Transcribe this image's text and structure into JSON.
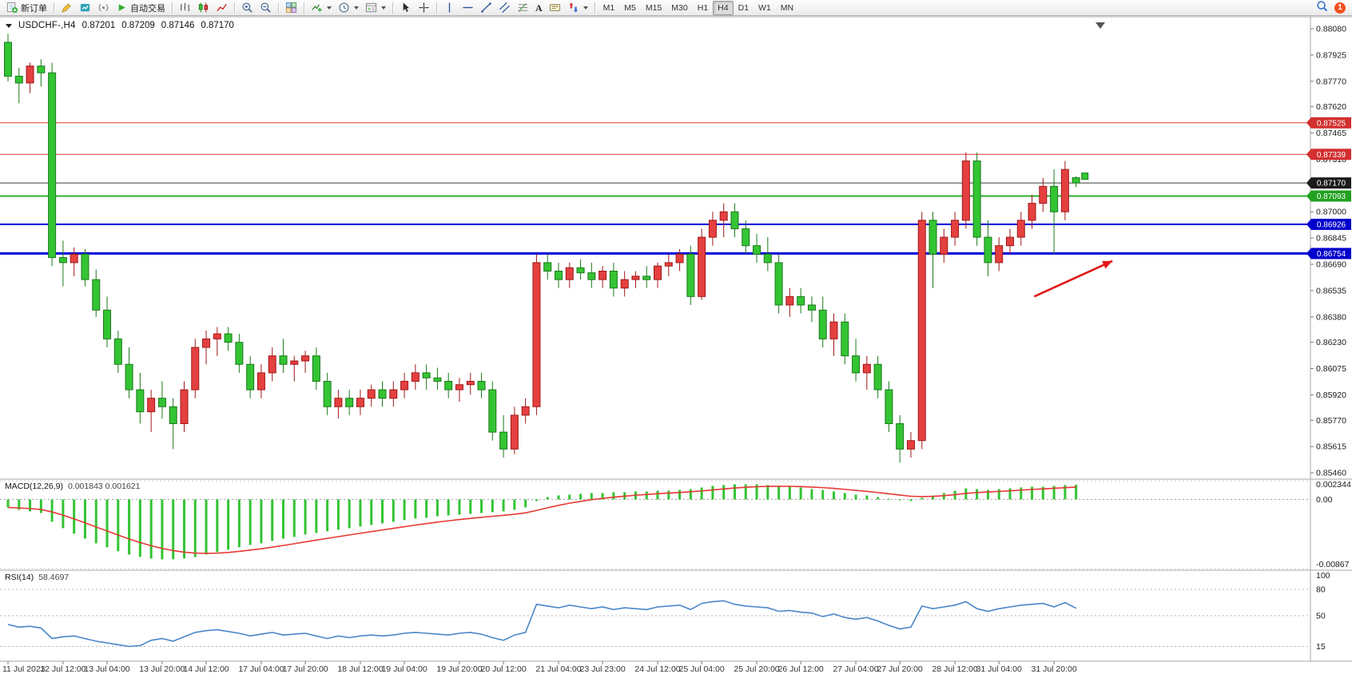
{
  "toolbar": {
    "new_order": "新订单",
    "autotrading": "自动交易",
    "timeframes": [
      "M1",
      "M5",
      "M15",
      "M30",
      "H1",
      "H4",
      "D1",
      "W1",
      "MN"
    ],
    "active_timeframe": "H4",
    "notification_count": "1",
    "glyphs": {
      "text_tool": "A"
    }
  },
  "chart": {
    "symbol": "USDCHF-,H4",
    "ohlc": {
      "open": "0.87201",
      "high": "0.87209",
      "low": "0.87146",
      "close": "0.87170"
    }
  },
  "macd": {
    "label": "MACD(12,26,9)",
    "values": "0.001843 0.001621"
  },
  "rsi": {
    "label": "RSI(14)",
    "value": "58.4697"
  },
  "chart_data": {
    "type": "candlestick",
    "symbol": "USDCHF-",
    "timeframe": "H4",
    "price_range": [
      0.85432,
      0.88146
    ],
    "colors": {
      "up": {
        "fill": "#e54040",
        "stroke": "#a01818"
      },
      "down": {
        "fill": "#33c433",
        "stroke": "#1b7a1b"
      }
    },
    "y_ticks": [
      "0.88080",
      "0.87925",
      "0.87770",
      "0.87620",
      "0.87465",
      "0.87310",
      "0.87155",
      "0.87000",
      "0.86845",
      "0.86690",
      "0.86535",
      "0.86380",
      "0.86230",
      "0.86075",
      "0.85920",
      "0.85770",
      "0.85615",
      "0.85460"
    ],
    "hlines": [
      {
        "price": 0.87525,
        "color": "#e03a3a",
        "width": 1,
        "label": "0.87525",
        "badge": "#d32f2f"
      },
      {
        "price": 0.87339,
        "color": "#e03a3a",
        "width": 1,
        "label": "0.87339",
        "badge": "#d32f2f"
      },
      {
        "price": 0.8717,
        "color": "#3c3c3c",
        "width": 1,
        "label": "0.87170",
        "badge": "#1b1b1b"
      },
      {
        "price": 0.87093,
        "color": "#2fae2f",
        "width": 2,
        "label": "0.87093",
        "badge": "#21a121"
      },
      {
        "price": 0.86926,
        "color": "#0000dd",
        "width": 2,
        "label": "0.86926",
        "badge": "#0000cc"
      },
      {
        "price": 0.86754,
        "color": "#0000dd",
        "width": 3,
        "label": "0.86754",
        "badge": "#0000cc"
      }
    ],
    "candles": [
      [
        0.88,
        0.8805,
        0.8777,
        0.878
      ],
      [
        0.878,
        0.8785,
        0.8764,
        0.8776
      ],
      [
        0.8776,
        0.8788,
        0.877,
        0.8786
      ],
      [
        0.8786,
        0.879,
        0.8774,
        0.8782
      ],
      [
        0.8782,
        0.8788,
        0.8668,
        0.8673
      ],
      [
        0.8673,
        0.8683,
        0.8656,
        0.867
      ],
      [
        0.867,
        0.8679,
        0.8662,
        0.8675
      ],
      [
        0.8675,
        0.8678,
        0.8656,
        0.866
      ],
      [
        0.866,
        0.8666,
        0.8638,
        0.8642
      ],
      [
        0.8642,
        0.865,
        0.862,
        0.8625
      ],
      [
        0.8625,
        0.863,
        0.8605,
        0.861
      ],
      [
        0.861,
        0.862,
        0.859,
        0.8595
      ],
      [
        0.8595,
        0.8605,
        0.8575,
        0.8582
      ],
      [
        0.8582,
        0.8595,
        0.857,
        0.859
      ],
      [
        0.859,
        0.86,
        0.8578,
        0.8585
      ],
      [
        0.8585,
        0.859,
        0.856,
        0.8575
      ],
      [
        0.8575,
        0.86,
        0.857,
        0.8595
      ],
      [
        0.8595,
        0.8625,
        0.859,
        0.862
      ],
      [
        0.862,
        0.863,
        0.861,
        0.8625
      ],
      [
        0.8625,
        0.8632,
        0.8615,
        0.8628
      ],
      [
        0.8628,
        0.8632,
        0.8618,
        0.8623
      ],
      [
        0.8623,
        0.8628,
        0.8605,
        0.861
      ],
      [
        0.861,
        0.8615,
        0.859,
        0.8595
      ],
      [
        0.8595,
        0.861,
        0.859,
        0.8605
      ],
      [
        0.8605,
        0.862,
        0.86,
        0.8615
      ],
      [
        0.8615,
        0.8625,
        0.8605,
        0.861
      ],
      [
        0.861,
        0.8615,
        0.86,
        0.8612
      ],
      [
        0.8612,
        0.8618,
        0.8605,
        0.8615
      ],
      [
        0.8615,
        0.862,
        0.8595,
        0.86
      ],
      [
        0.86,
        0.8605,
        0.858,
        0.8585
      ],
      [
        0.8585,
        0.8595,
        0.8578,
        0.859
      ],
      [
        0.859,
        0.8595,
        0.858,
        0.8585
      ],
      [
        0.8585,
        0.8595,
        0.858,
        0.859
      ],
      [
        0.859,
        0.8598,
        0.8585,
        0.8595
      ],
      [
        0.8595,
        0.86,
        0.8585,
        0.859
      ],
      [
        0.859,
        0.86,
        0.8585,
        0.8595
      ],
      [
        0.8595,
        0.8605,
        0.859,
        0.86
      ],
      [
        0.86,
        0.861,
        0.8595,
        0.8605
      ],
      [
        0.8605,
        0.861,
        0.8595,
        0.8602
      ],
      [
        0.8602,
        0.8608,
        0.8595,
        0.86
      ],
      [
        0.86,
        0.8605,
        0.859,
        0.8595
      ],
      [
        0.8595,
        0.8602,
        0.8588,
        0.8598
      ],
      [
        0.8598,
        0.8605,
        0.8592,
        0.86
      ],
      [
        0.86,
        0.8605,
        0.859,
        0.8595
      ],
      [
        0.8595,
        0.86,
        0.8565,
        0.857
      ],
      [
        0.857,
        0.858,
        0.8555,
        0.856
      ],
      [
        0.856,
        0.8585,
        0.8557,
        0.858
      ],
      [
        0.858,
        0.859,
        0.8575,
        0.8585
      ],
      [
        0.8585,
        0.8675,
        0.858,
        0.867
      ],
      [
        0.867,
        0.8675,
        0.866,
        0.8665
      ],
      [
        0.8665,
        0.867,
        0.8655,
        0.866
      ],
      [
        0.866,
        0.867,
        0.8655,
        0.8667
      ],
      [
        0.8667,
        0.8672,
        0.866,
        0.8664
      ],
      [
        0.8664,
        0.867,
        0.8655,
        0.866
      ],
      [
        0.866,
        0.8668,
        0.8655,
        0.8665
      ],
      [
        0.8665,
        0.867,
        0.865,
        0.8655
      ],
      [
        0.8655,
        0.8665,
        0.865,
        0.866
      ],
      [
        0.866,
        0.8665,
        0.8655,
        0.8662
      ],
      [
        0.8662,
        0.8668,
        0.8655,
        0.866
      ],
      [
        0.866,
        0.867,
        0.8655,
        0.8668
      ],
      [
        0.8668,
        0.8675,
        0.8662,
        0.867
      ],
      [
        0.867,
        0.8678,
        0.8665,
        0.8675
      ],
      [
        0.8675,
        0.868,
        0.8645,
        0.865
      ],
      [
        0.865,
        0.869,
        0.8648,
        0.8685
      ],
      [
        0.8685,
        0.87,
        0.868,
        0.8695
      ],
      [
        0.8695,
        0.8705,
        0.8685,
        0.87
      ],
      [
        0.87,
        0.8705,
        0.8685,
        0.869
      ],
      [
        0.869,
        0.8695,
        0.8675,
        0.868
      ],
      [
        0.868,
        0.8687,
        0.867,
        0.8675
      ],
      [
        0.8675,
        0.8685,
        0.8665,
        0.867
      ],
      [
        0.867,
        0.8675,
        0.864,
        0.8645
      ],
      [
        0.8645,
        0.8655,
        0.8638,
        0.865
      ],
      [
        0.865,
        0.8655,
        0.864,
        0.8645
      ],
      [
        0.8645,
        0.865,
        0.8635,
        0.8642
      ],
      [
        0.8642,
        0.865,
        0.862,
        0.8625
      ],
      [
        0.8625,
        0.864,
        0.8615,
        0.8635
      ],
      [
        0.8635,
        0.864,
        0.861,
        0.8615
      ],
      [
        0.8615,
        0.8625,
        0.86,
        0.8605
      ],
      [
        0.8605,
        0.8615,
        0.8595,
        0.861
      ],
      [
        0.861,
        0.8615,
        0.859,
        0.8595
      ],
      [
        0.8595,
        0.86,
        0.857,
        0.8575
      ],
      [
        0.8575,
        0.858,
        0.8552,
        0.856
      ],
      [
        0.856,
        0.857,
        0.8555,
        0.8565
      ],
      [
        0.8565,
        0.87,
        0.856,
        0.8695
      ],
      [
        0.8695,
        0.87,
        0.8655,
        0.8675
      ],
      [
        0.8675,
        0.869,
        0.867,
        0.8685
      ],
      [
        0.8685,
        0.87,
        0.868,
        0.8695
      ],
      [
        0.8695,
        0.8735,
        0.869,
        0.873
      ],
      [
        0.873,
        0.8735,
        0.868,
        0.8685
      ],
      [
        0.8685,
        0.8695,
        0.8662,
        0.867
      ],
      [
        0.867,
        0.8685,
        0.8665,
        0.868
      ],
      [
        0.868,
        0.869,
        0.8675,
        0.8685
      ],
      [
        0.8685,
        0.87,
        0.868,
        0.8695
      ],
      [
        0.8695,
        0.871,
        0.869,
        0.8705
      ],
      [
        0.8705,
        0.872,
        0.87,
        0.8715
      ],
      [
        0.8715,
        0.8725,
        0.8675,
        0.87
      ],
      [
        0.87,
        0.873,
        0.8695,
        0.8725
      ],
      [
        0.87201,
        0.87209,
        0.87146,
        0.8717
      ]
    ],
    "x_labels": [
      {
        "i": 0,
        "t": "11 Jul 2023"
      },
      {
        "i": 5,
        "t": "12 Jul 12:00"
      },
      {
        "i": 9,
        "t": "13 Jul 04:00"
      },
      {
        "i": 14,
        "t": "13 Jul 20:00"
      },
      {
        "i": 18,
        "t": "14 Jul 12:00"
      },
      {
        "i": 23,
        "t": "17 Jul 04:00"
      },
      {
        "i": 27,
        "t": "17 Jul 20:00"
      },
      {
        "i": 32,
        "t": "18 Jul 12:00"
      },
      {
        "i": 36,
        "t": "19 Jul 04:00"
      },
      {
        "i": 41,
        "t": "19 Jul 20:00"
      },
      {
        "i": 45,
        "t": "20 Jul 12:00"
      },
      {
        "i": 50,
        "t": "21 Jul 04:00"
      },
      {
        "i": 54,
        "t": "23 Jul 23:00"
      },
      {
        "i": 59,
        "t": "24 Jul 12:00"
      },
      {
        "i": 63,
        "t": "25 Jul 04:00"
      },
      {
        "i": 68,
        "t": "25 Jul 20:00"
      },
      {
        "i": 72,
        "t": "26 Jul 12:00"
      },
      {
        "i": 77,
        "t": "27 Jul 04:00"
      },
      {
        "i": 81,
        "t": "27 Jul 20:00"
      },
      {
        "i": 86,
        "t": "28 Jul 12:00"
      },
      {
        "i": 90,
        "t": "31 Jul 04:00"
      },
      {
        "i": 95,
        "t": "31 Jul 20:00"
      }
    ],
    "macd": {
      "params": "12,26,9",
      "main_value": 0.001843,
      "signal_value": 0.001621,
      "range": [
        -0.00867,
        0.002344
      ],
      "axis": [
        {
          "v": 0.002344,
          "t": "0.002344"
        },
        {
          "v": 0,
          "t": "0.00"
        },
        {
          "v": -0.00867,
          "t": "-0.00867"
        }
      ],
      "hist": [
        -0.001,
        -0.0013,
        -0.0015,
        -0.0017,
        -0.0028,
        -0.0036,
        -0.0043,
        -0.0049,
        -0.0055,
        -0.006,
        -0.0065,
        -0.0069,
        -0.0072,
        -0.0074,
        -0.0075,
        -0.0075,
        -0.0074,
        -0.0072,
        -0.0069,
        -0.0066,
        -0.0063,
        -0.006,
        -0.0057,
        -0.0055,
        -0.0052,
        -0.0049,
        -0.0047,
        -0.0044,
        -0.0042,
        -0.004,
        -0.0038,
        -0.0036,
        -0.0034,
        -0.0032,
        -0.003,
        -0.0028,
        -0.0026,
        -0.0024,
        -0.0023,
        -0.0021,
        -0.002,
        -0.0019,
        -0.0018,
        -0.0017,
        -0.0016,
        -0.0015,
        -0.0013,
        -0.001,
        -0.0002,
        0.0003,
        0.0005,
        0.0006,
        0.0007,
        0.0008,
        0.0008,
        0.0009,
        0.0009,
        0.001,
        0.001,
        0.0011,
        0.0011,
        0.0012,
        0.0013,
        0.0015,
        0.0017,
        0.0018,
        0.0019,
        0.0019,
        0.0019,
        0.0018,
        0.0017,
        0.0016,
        0.0015,
        0.0013,
        0.0012,
        0.001,
        0.0008,
        0.0006,
        0.0005,
        0.0003,
        0.0001,
        -0.0001,
        -0.0002,
        0.0002,
        0.0005,
        0.0008,
        0.0011,
        0.0014,
        0.0013,
        0.0012,
        0.0013,
        0.0014,
        0.0015,
        0.0016,
        0.0016,
        0.0017,
        0.0018,
        0.001843
      ]
    },
    "rsi": {
      "period": 14,
      "last": 58.4697,
      "levels": [
        80,
        50,
        15
      ],
      "axis": [
        {
          "v": 100,
          "t": "100"
        },
        {
          "v": 80,
          "t": "80"
        },
        {
          "v": 50,
          "t": "50"
        },
        {
          "v": 15,
          "t": "15"
        }
      ],
      "values": [
        40,
        37,
        38,
        36,
        24,
        26,
        27,
        24,
        21,
        19,
        17,
        15,
        16,
        22,
        24,
        21,
        26,
        31,
        33,
        34,
        32,
        30,
        27,
        29,
        31,
        28,
        29,
        30,
        27,
        24,
        27,
        25,
        27,
        28,
        27,
        28,
        30,
        31,
        30,
        29,
        28,
        30,
        31,
        29,
        25,
        22,
        28,
        31,
        63,
        61,
        59,
        62,
        60,
        58,
        60,
        57,
        59,
        58,
        57,
        60,
        61,
        62,
        57,
        64,
        66,
        67,
        63,
        61,
        60,
        59,
        55,
        56,
        54,
        53,
        49,
        52,
        48,
        46,
        48,
        44,
        39,
        35,
        37,
        61,
        58,
        60,
        62,
        66,
        58,
        55,
        58,
        60,
        62,
        63,
        64,
        60,
        65,
        58.47
      ]
    },
    "arrow": {
      "i1": 93.2,
      "p1": 0.865,
      "i2": 100.3,
      "p2": 0.8671,
      "color": "#e01818"
    },
    "marker": {
      "i": 97.8,
      "p": 0.8721
    }
  }
}
